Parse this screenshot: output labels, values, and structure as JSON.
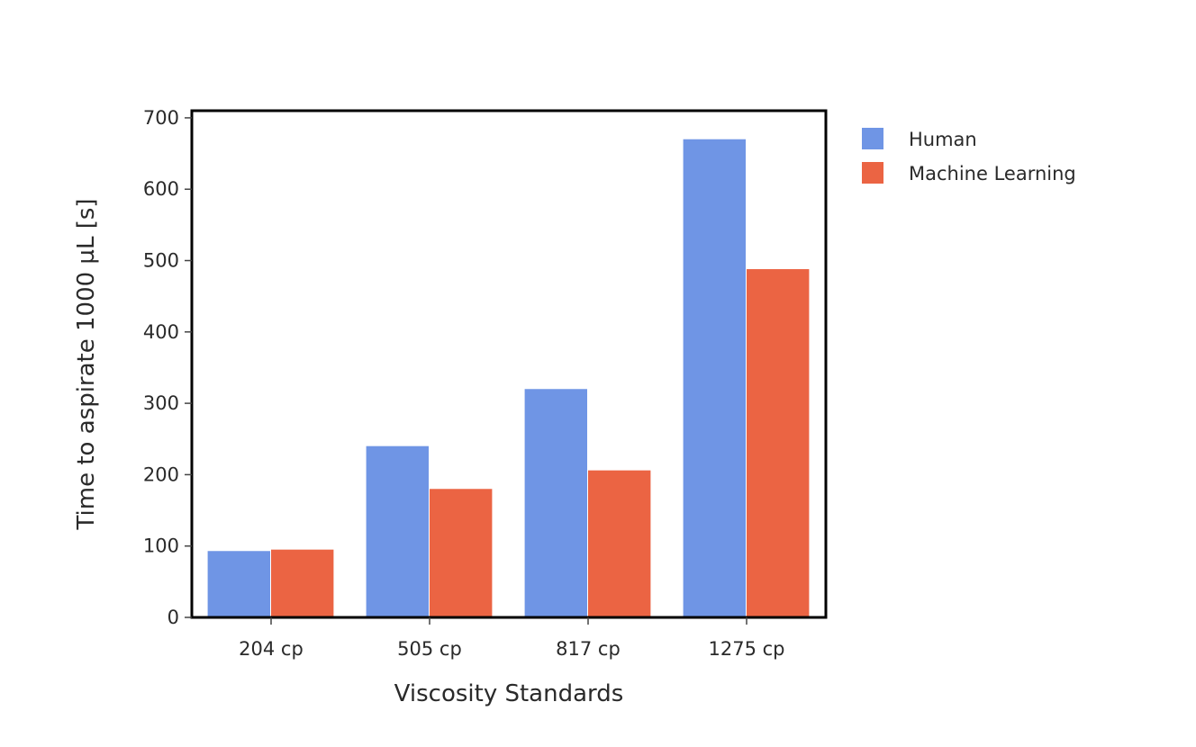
{
  "chart_data": {
    "type": "bar",
    "title": "",
    "xlabel": "Viscosity Standards",
    "ylabel": "Time to aspirate 1000 µL [s]",
    "categories": [
      "204 cp",
      "505 cp",
      "817 cp",
      "1275 cp"
    ],
    "series": [
      {
        "name": "Human",
        "color": "#6f95e5",
        "values": [
          93,
          240,
          320,
          670
        ]
      },
      {
        "name": "Machine Learning",
        "color": "#eb6443",
        "values": [
          95,
          180,
          206,
          488
        ]
      }
    ],
    "ylim": [
      0,
      710
    ],
    "yticks": [
      0,
      100,
      200,
      300,
      400,
      500,
      600,
      700
    ],
    "grid": false,
    "legend_position": "top-right-outside"
  }
}
